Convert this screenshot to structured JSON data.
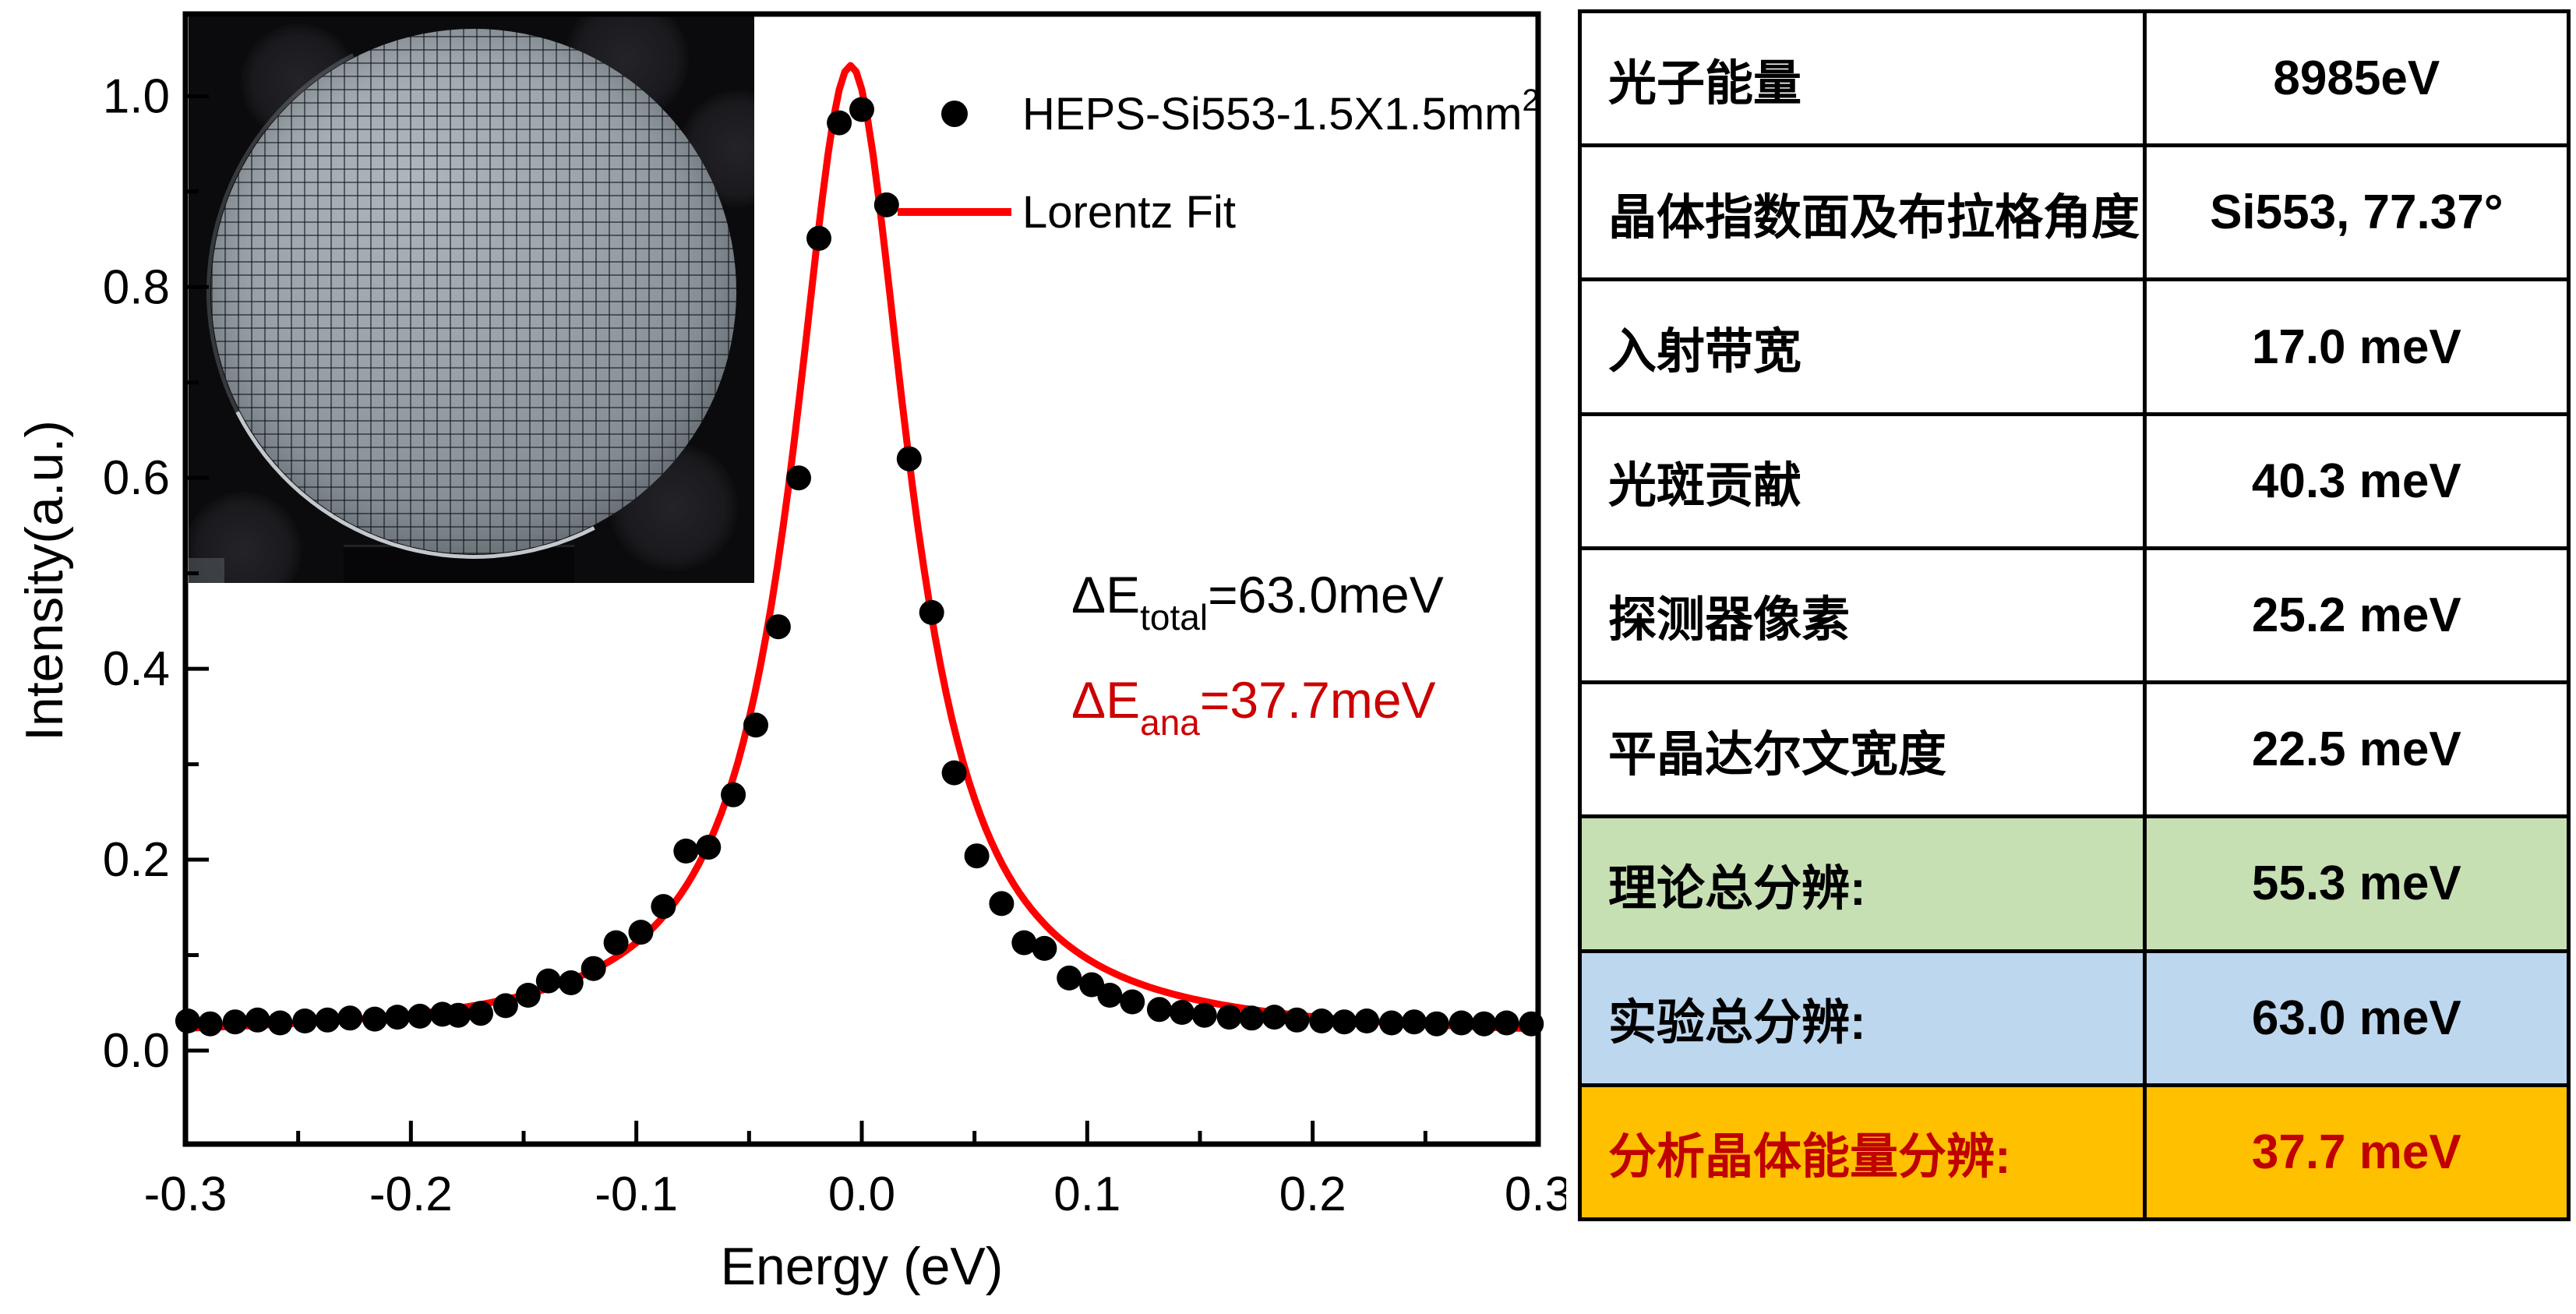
{
  "chart": {
    "legend": [
      {
        "marker": "dot",
        "label": "HEPS-Si553-1.5X1.5mm",
        "sup": "2",
        "color": "#000000"
      },
      {
        "marker": "line",
        "label": "Lorentz Fit",
        "sup": "",
        "color": "#ff0000"
      }
    ],
    "annotations": [
      {
        "pre": "ΔE",
        "sub": "total",
        "post": "=63.0meV",
        "color": "#000000"
      },
      {
        "pre": "ΔE",
        "sub": "ana",
        "post": "=37.7meV",
        "color": "#cc0000"
      }
    ]
  },
  "chart_data": {
    "type": "scatter",
    "title": "",
    "xlabel": "Energy (eV)",
    "ylabel": "Intensity(a.u.)",
    "xlim": [
      -0.3,
      0.3
    ],
    "ylim": [
      -0.098,
      1.086
    ],
    "x_ticks": [
      -0.3,
      -0.2,
      -0.1,
      0.0,
      0.1,
      0.2,
      0.3
    ],
    "x_tick_labels": [
      "-0.3",
      "-0.2",
      "-0.1",
      "0.0",
      "0.1",
      "0.2",
      "0.3"
    ],
    "x_minor_ticks": [
      -0.25,
      -0.15,
      -0.05,
      0.05,
      0.15,
      0.25
    ],
    "y_ticks": [
      0.0,
      0.2,
      0.4,
      0.6,
      0.8,
      1.0
    ],
    "y_tick_labels": [
      "0.0",
      "0.2",
      "0.4",
      "0.6",
      "0.8",
      "1.0"
    ],
    "y_minor_ticks": [
      0.1,
      0.3,
      0.5,
      0.7,
      0.9
    ],
    "grid": false,
    "legend_position": "top-right",
    "series": [
      {
        "name": "HEPS-Si553-1.5X1.5mm2",
        "type": "scatter",
        "color": "#000000",
        "points": [
          [
            -0.299,
            0.031
          ],
          [
            -0.289,
            0.028
          ],
          [
            -0.278,
            0.03
          ],
          [
            -0.268,
            0.032
          ],
          [
            -0.258,
            0.029
          ],
          [
            -0.247,
            0.031
          ],
          [
            -0.237,
            0.032
          ],
          [
            -0.227,
            0.034
          ],
          [
            -0.216,
            0.033
          ],
          [
            -0.206,
            0.035
          ],
          [
            -0.196,
            0.036
          ],
          [
            -0.186,
            0.038
          ],
          [
            -0.179,
            0.037
          ],
          [
            -0.169,
            0.039
          ],
          [
            -0.158,
            0.047
          ],
          [
            -0.148,
            0.058
          ],
          [
            -0.139,
            0.073
          ],
          [
            -0.129,
            0.071
          ],
          [
            -0.119,
            0.086
          ],
          [
            -0.109,
            0.113
          ],
          [
            -0.098,
            0.124
          ],
          [
            -0.088,
            0.151
          ],
          [
            -0.078,
            0.209
          ],
          [
            -0.068,
            0.213
          ],
          [
            -0.057,
            0.268
          ],
          [
            -0.047,
            0.341
          ],
          [
            -0.037,
            0.444
          ],
          [
            -0.028,
            0.6
          ],
          [
            -0.019,
            0.851
          ],
          [
            -0.01,
            0.972
          ],
          [
            0.0,
            0.986
          ],
          [
            0.011,
            0.886
          ],
          [
            0.021,
            0.62
          ],
          [
            0.031,
            0.459
          ],
          [
            0.041,
            0.291
          ],
          [
            0.051,
            0.204
          ],
          [
            0.062,
            0.154
          ],
          [
            0.072,
            0.113
          ],
          [
            0.081,
            0.107
          ],
          [
            0.092,
            0.076
          ],
          [
            0.102,
            0.069
          ],
          [
            0.11,
            0.058
          ],
          [
            0.12,
            0.051
          ],
          [
            0.132,
            0.043
          ],
          [
            0.142,
            0.04
          ],
          [
            0.152,
            0.037
          ],
          [
            0.163,
            0.035
          ],
          [
            0.173,
            0.034
          ],
          [
            0.183,
            0.035
          ],
          [
            0.193,
            0.032
          ],
          [
            0.204,
            0.031
          ],
          [
            0.214,
            0.03
          ],
          [
            0.224,
            0.031
          ],
          [
            0.235,
            0.029
          ],
          [
            0.245,
            0.03
          ],
          [
            0.255,
            0.028
          ],
          [
            0.266,
            0.029
          ],
          [
            0.276,
            0.028
          ],
          [
            0.286,
            0.029
          ],
          [
            0.297,
            0.028
          ]
        ]
      },
      {
        "name": "Lorentz Fit",
        "type": "lorentzian",
        "color": "#ff0000",
        "baseline": 0.012,
        "amplitude": 1.02,
        "center": -0.005,
        "hwhm": 0.0315,
        "fwhm_meV": 63.0
      }
    ]
  },
  "inset": {
    "description": "photo of circular diced Si553 analyzer wafer in black holder"
  },
  "table": {
    "rows": [
      {
        "label": "光子能量",
        "value": "8985eV",
        "bg": "#ffffff",
        "text": "#000000"
      },
      {
        "label": "晶体指数面及布拉格角度",
        "value": "Si553, 77.37°",
        "bg": "#ffffff",
        "text": "#000000"
      },
      {
        "label": "入射带宽",
        "value": "17.0 meV",
        "bg": "#ffffff",
        "text": "#000000"
      },
      {
        "label": "光斑贡献",
        "value": "40.3 meV",
        "bg": "#ffffff",
        "text": "#000000"
      },
      {
        "label": "探测器像素",
        "value": "25.2 meV",
        "bg": "#ffffff",
        "text": "#000000"
      },
      {
        "label": "平晶达尔文宽度",
        "value": "22.5 meV",
        "bg": "#ffffff",
        "text": "#000000"
      },
      {
        "label": "理论总分辨:",
        "value": "55.3 meV",
        "bg": "#c6e0b4",
        "text": "#000000"
      },
      {
        "label": "实验总分辨:",
        "value": "63.0 meV",
        "bg": "#bdd7ee",
        "text": "#000000"
      },
      {
        "label": "分析晶体能量分辨:",
        "value": "37.7 meV",
        "bg": "#ffc000",
        "text": "#c00000"
      }
    ]
  }
}
